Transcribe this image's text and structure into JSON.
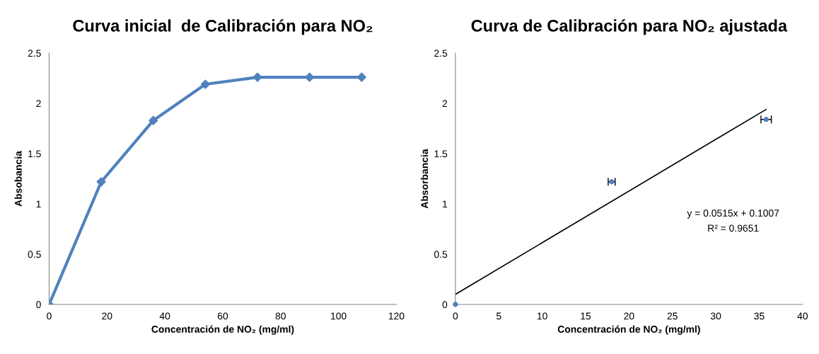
{
  "chart_data": [
    {
      "type": "line",
      "title": "Curva inicial  de Calibración para NO₂",
      "xlabel": "Concentración de NO₂ (mg/ml)",
      "ylabel": "Absobancia",
      "x": [
        0,
        18,
        36,
        54,
        72,
        90,
        108
      ],
      "series": [
        {
          "color": "#4f81bd",
          "values": [
            0,
            1.22,
            1.83,
            2.19,
            2.26,
            2.26,
            2.26
          ]
        }
      ],
      "xlim": [
        0,
        120
      ],
      "xticks": [
        0,
        20,
        40,
        60,
        80,
        100,
        120
      ],
      "ylim": [
        0,
        2.5
      ],
      "yticks": [
        0,
        0.5,
        1,
        1.5,
        2,
        2.5
      ],
      "marker": "diamond",
      "line_style": "solid",
      "grid": false,
      "legend": false
    },
    {
      "type": "scatter",
      "title": "Curva de Calibración para NO₂ ajustada",
      "xlabel": "Concentración de NO₂ (mg/ml)",
      "ylabel": "Absorbancia",
      "series": [
        {
          "type": "scatter",
          "color": "#4f81bd",
          "x": [
            0,
            18,
            35.8
          ],
          "values": [
            0,
            1.22,
            1.84
          ],
          "xerrors": [
            null,
            0.4,
            0.6
          ],
          "marker": "circle"
        },
        {
          "type": "line",
          "color": "#000000",
          "x": [
            0,
            35.8
          ],
          "values": [
            0.1,
            1.94
          ],
          "marker": "none"
        }
      ],
      "annotations": [
        "y = 0.0515x + 0.1007",
        "R² = 0.9651"
      ],
      "xlim": [
        0,
        40
      ],
      "xticks": [
        0,
        5,
        10,
        15,
        20,
        25,
        30,
        35,
        40
      ],
      "ylim": [
        0,
        2.5
      ],
      "yticks": [
        0,
        0.5,
        1,
        1.5,
        2,
        2.5
      ],
      "grid": false,
      "legend": false
    }
  ]
}
